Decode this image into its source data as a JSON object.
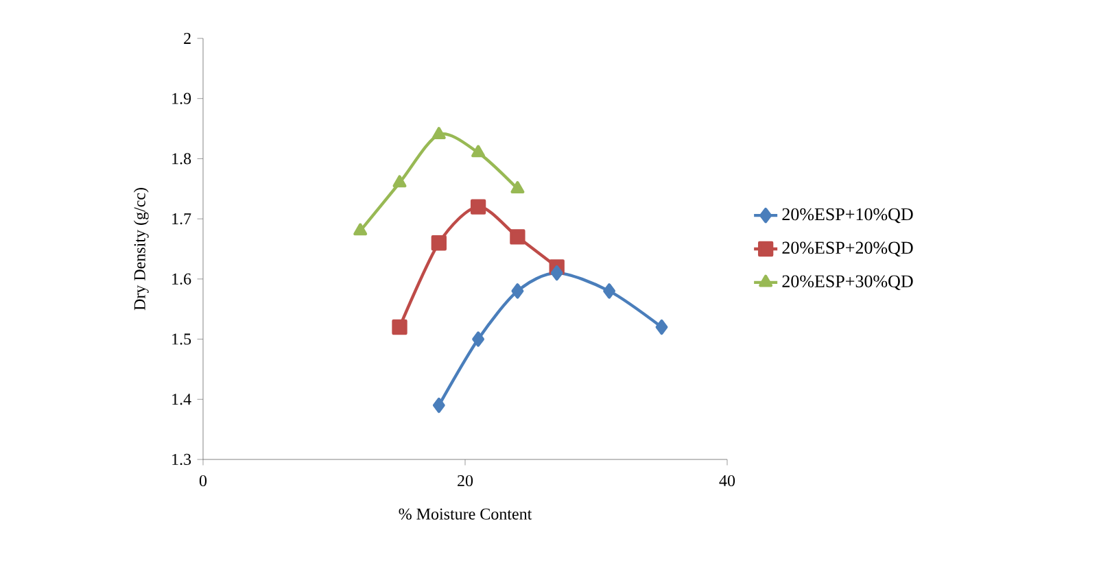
{
  "chart_data": {
    "type": "line",
    "xlabel": "% Moisture Content",
    "ylabel": "Dry Density (g/cc)",
    "xlim": [
      0,
      40
    ],
    "xticks": [
      0,
      20,
      40
    ],
    "ylim": [
      1.3,
      2
    ],
    "yticks": [
      1.3,
      1.4,
      1.5,
      1.6,
      1.7,
      1.8,
      1.9,
      2
    ],
    "legend": "right",
    "grid": false,
    "line_style": "solid",
    "series": [
      {
        "name": "20%ESP+10%QD",
        "color": "#4a7ebb",
        "marker": "diamond",
        "x": [
          18,
          21,
          24,
          27,
          31,
          35
        ],
        "values": [
          1.39,
          1.5,
          1.58,
          1.61,
          1.58,
          1.52
        ]
      },
      {
        "name": "20%ESP+20%QD",
        "color": "#be4b48",
        "marker": "square",
        "x": [
          15,
          18,
          21,
          24,
          27
        ],
        "values": [
          1.52,
          1.66,
          1.72,
          1.67,
          1.62
        ]
      },
      {
        "name": "20%ESP+30%QD",
        "color": "#98b954",
        "marker": "triangle",
        "x": [
          12,
          15,
          18,
          21,
          24
        ],
        "values": [
          1.68,
          1.76,
          1.84,
          1.81,
          1.75
        ]
      }
    ]
  }
}
